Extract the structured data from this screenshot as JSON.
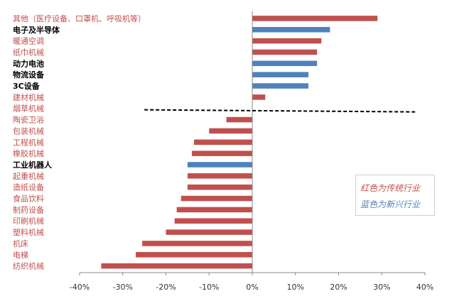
{
  "chart_data": {
    "type": "bar",
    "orientation": "horizontal",
    "categories": [
      "其他（医疗设备、口罩机、呼吸机等）",
      "电子及半导体",
      "暖通空调",
      "纸巾机械",
      "动力电池",
      "物流设备",
      "3C设备",
      "建材机械",
      "烟草机械",
      "陶瓷卫浴",
      "包装机械",
      "工程机械",
      "橡胶机械",
      "工业机器人",
      "起重机械",
      "造纸设备",
      "食品饮料",
      "制药设备",
      "印刷机械",
      "塑料机械",
      "机床",
      "电梯",
      "纺织机械"
    ],
    "values": [
      29,
      18,
      16,
      15,
      15,
      13,
      13,
      3,
      0,
      -6,
      -10,
      -13.5,
      -14,
      -15,
      -15,
      -15,
      -16.5,
      -17.5,
      -18,
      -20,
      -25.5,
      -27,
      -35
    ],
    "groups": [
      "traditional",
      "emerging",
      "traditional",
      "traditional",
      "emerging",
      "emerging",
      "emerging",
      "traditional",
      "traditional",
      "traditional",
      "traditional",
      "traditional",
      "traditional",
      "emerging",
      "traditional",
      "traditional",
      "traditional",
      "traditional",
      "traditional",
      "traditional",
      "traditional",
      "traditional",
      "traditional"
    ],
    "xlim": [
      -40,
      40
    ],
    "xticks": [
      -40,
      -30,
      -20,
      -10,
      0,
      10,
      20,
      30,
      40
    ],
    "xtick_labels": [
      "-40%",
      "-30%",
      "-20%",
      "-10%",
      "0%",
      "10%",
      "20%",
      "30%",
      "40%"
    ],
    "divider": {
      "style": "dashed",
      "from_x": -25,
      "to_x": 38
    },
    "legend": {
      "traditional": {
        "label": "红色为传统行业",
        "color": "#c0504d"
      },
      "emerging": {
        "label": "蓝色为新兴行业",
        "color": "#4f81bd"
      }
    },
    "label_colors": {
      "traditional": "#c0504d",
      "emerging": "#000000"
    },
    "title": "",
    "xlabel": "",
    "ylabel": ""
  }
}
